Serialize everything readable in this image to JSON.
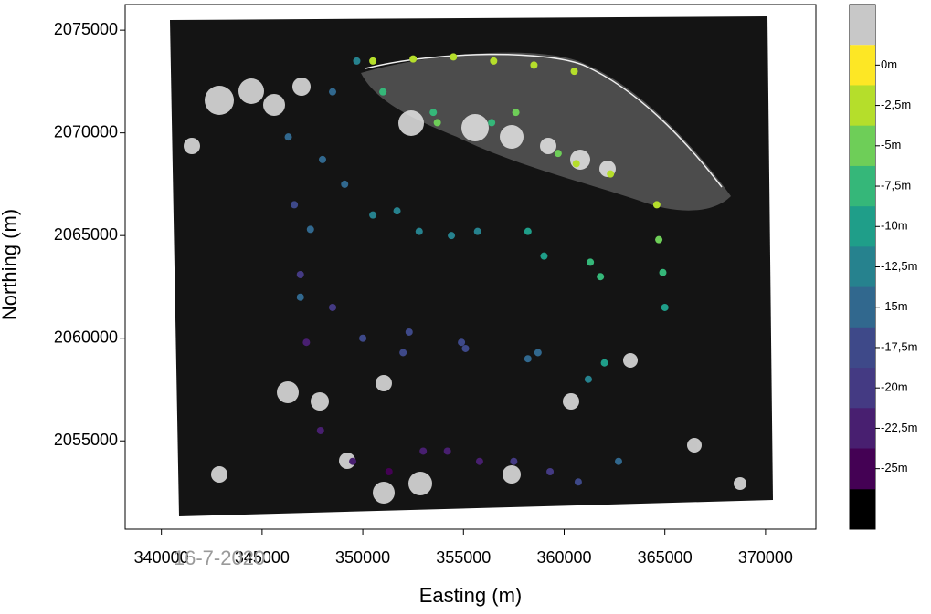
{
  "chart_data": {
    "type": "scatter",
    "x_label": "Easting (m)",
    "y_label": "Northing (m)",
    "annotation": "16-7-2020",
    "xlim": [
      338200,
      372500
    ],
    "ylim": [
      2050700,
      2076250
    ],
    "xticks": [
      340000,
      345000,
      350000,
      355000,
      360000,
      365000,
      370000
    ],
    "yticks": [
      2055000,
      2060000,
      2065000,
      2070000,
      2075000
    ],
    "colorbar_ticks": [
      {
        "value": 0,
        "label": "0m"
      },
      {
        "value": -2.5,
        "label": "-2,5m"
      },
      {
        "value": -5,
        "label": "-5m"
      },
      {
        "value": -7.5,
        "label": "-7,5m"
      },
      {
        "value": -10,
        "label": "-10m"
      },
      {
        "value": -12.5,
        "label": "-12,5m"
      },
      {
        "value": -15,
        "label": "-15m"
      },
      {
        "value": -17.5,
        "label": "-17,5m"
      },
      {
        "value": -20,
        "label": "-20m"
      },
      {
        "value": -22.5,
        "label": "-22,5m"
      },
      {
        "value": -25,
        "label": "-25m"
      }
    ],
    "colorbar_colors": [
      "#fde725",
      "#b5de2b",
      "#6ece58",
      "#35b779",
      "#1f9e89",
      "#26828e",
      "#31688e",
      "#3e4989",
      "#443a83",
      "#481f70",
      "#440154"
    ],
    "colorbar_over": "#c8c8c8",
    "colorbar_under": "#000000",
    "x": [
      346300,
      346600,
      346900,
      347200,
      348500,
      348000,
      347400,
      346900,
      349700,
      349100,
      348500,
      347900,
      351000,
      350500,
      350000,
      349500,
      351000,
      351700,
      352300,
      353000,
      353500,
      352800,
      352000,
      351300,
      353700,
      354400,
      355100,
      355800,
      356400,
      355700,
      354900,
      354200,
      357600,
      358200,
      358700,
      359300,
      359700,
      359000,
      358200,
      357500,
      360600,
      361300,
      362000,
      362700,
      362300,
      361800,
      361200,
      360700,
      364600,
      364700,
      364900,
      365000,
      350500,
      352500,
      354500,
      356500,
      358500,
      360500
    ],
    "y": [
      2069800,
      2066500,
      2063100,
      2059800,
      2072000,
      2068700,
      2065300,
      2062000,
      2073500,
      2067500,
      2061500,
      2055500,
      2072000,
      2066000,
      2060000,
      2054000,
      2072000,
      2066200,
      2060300,
      2054500,
      2071000,
      2065200,
      2059300,
      2053500,
      2070500,
      2065000,
      2059500,
      2054000,
      2070500,
      2065200,
      2059800,
      2054500,
      2071000,
      2065200,
      2059300,
      2053500,
      2069000,
      2064000,
      2059000,
      2054000,
      2068500,
      2063700,
      2058800,
      2054000,
      2068000,
      2063000,
      2058000,
      2053000,
      2066500,
      2064800,
      2063200,
      2061500,
      2073500,
      2073600,
      2073700,
      2073500,
      2073300,
      2073000
    ],
    "depth": [
      -15,
      -17.5,
      -20,
      -22.5,
      -14,
      -14.5,
      -15,
      -16,
      -12,
      -15.5,
      -19,
      -22.5,
      -8,
      -12.5,
      -17.5,
      -22,
      -8,
      -12.5,
      -17.5,
      -22,
      -8,
      -13,
      -18.5,
      -24,
      -6,
      -11.5,
      -17,
      -22.5,
      -7,
      -12,
      -17,
      -22,
      -4,
      -9.5,
      -15,
      -20,
      -4,
      -9.5,
      -15.5,
      -21,
      -3,
      -7,
      -11,
      -15,
      -2.5,
      -7.5,
      -13,
      -18,
      -2,
      -4.5,
      -7,
      -9,
      -1.5,
      -2,
      -2,
      -2.5,
      -2,
      -2
    ]
  }
}
